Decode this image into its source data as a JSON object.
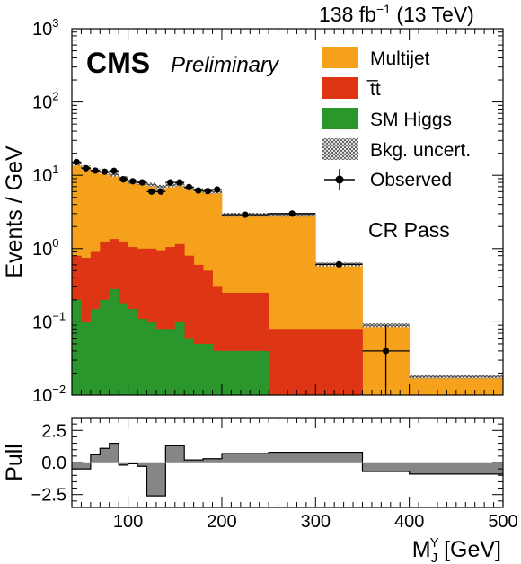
{
  "header": {
    "lumi": "138 fb",
    "lumi_sup": "−1",
    "energy": "(13 TeV)"
  },
  "labels": {
    "cms": "CMS",
    "preliminary": "Preliminary",
    "region": "CR Pass"
  },
  "colors": {
    "multijet": "#f5a11b",
    "ttbar": "#de3615",
    "smhiggs": "#2b962b",
    "pull_fill": "#868686",
    "hatch": "#555555"
  },
  "chart_data": [
    {
      "type": "stacked-bar-histogram",
      "xlabel": "",
      "ylabel": "Events / GeV",
      "yscale": "log",
      "ylim": [
        0.01,
        1000
      ],
      "xlim": [
        40,
        500
      ],
      "ytick_labels": [
        {
          "base": "10",
          "exp": "−2"
        },
        {
          "base": "10",
          "exp": "−1"
        },
        {
          "base": "10",
          "exp": "0"
        },
        {
          "base": "10",
          "exp": "1"
        },
        {
          "base": "10",
          "exp": "2"
        },
        {
          "base": "10",
          "exp": "3"
        }
      ],
      "bin_edges": [
        40,
        50,
        60,
        70,
        80,
        90,
        100,
        110,
        120,
        130,
        140,
        150,
        160,
        170,
        180,
        190,
        200,
        250,
        300,
        350,
        400,
        500
      ],
      "series": [
        {
          "name": "SM Higgs",
          "stack_top": [
            0.2,
            0.1,
            0.15,
            0.2,
            0.28,
            0.18,
            0.15,
            0.11,
            0.1,
            0.08,
            0.08,
            0.1,
            0.06,
            0.05,
            0.05,
            0.04,
            0.04,
            0.01,
            0.01,
            0.01,
            0.01
          ]
        },
        {
          "name": "t̅t",
          "latex": "t\\bar{t}",
          "stack_top": [
            0.8,
            0.75,
            0.9,
            1.25,
            1.35,
            1.25,
            1.05,
            1.0,
            1.0,
            0.95,
            1.05,
            1.15,
            0.8,
            0.6,
            0.5,
            0.3,
            0.25,
            0.08,
            0.08,
            0.01,
            0.01
          ]
        },
        {
          "name": "Multijet",
          "stack_top": [
            14.5,
            12.8,
            11.8,
            11.0,
            10.2,
            9.2,
            8.2,
            7.9,
            7.5,
            7.0,
            7.3,
            7.5,
            6.7,
            6.3,
            6.0,
            6.0,
            2.9,
            2.9,
            0.61,
            0.09,
            0.018
          ]
        }
      ],
      "uncertainty": {
        "name": "Bkg. uncert.",
        "relative": 0.06
      },
      "observed": {
        "name": "Observed",
        "x": [
          45,
          55,
          65,
          75,
          85,
          95,
          105,
          115,
          125,
          135,
          145,
          155,
          165,
          175,
          185,
          195,
          225,
          275,
          325,
          375,
          450
        ],
        "xerr": [
          5,
          5,
          5,
          5,
          5,
          5,
          5,
          5,
          5,
          5,
          5,
          5,
          5,
          5,
          5,
          5,
          25,
          25,
          25,
          25,
          50
        ],
        "y": [
          15.2,
          12.5,
          11.6,
          11.2,
          11.5,
          8.8,
          8.3,
          8.0,
          6.0,
          6.0,
          8.0,
          8.0,
          6.9,
          6.2,
          6.1,
          6.4,
          2.9,
          3.0,
          0.61,
          0.04,
          null
        ],
        "yerr_low": [
          0.8,
          0.7,
          0.7,
          0.7,
          0.7,
          0.6,
          0.6,
          0.6,
          0.5,
          0.5,
          0.6,
          0.6,
          0.6,
          0.5,
          0.5,
          0.5,
          0.2,
          0.2,
          0.05,
          0.03,
          null
        ],
        "yerr_high": [
          0.8,
          0.7,
          0.7,
          0.7,
          0.7,
          0.6,
          0.6,
          0.6,
          0.5,
          0.5,
          0.6,
          0.6,
          0.6,
          0.5,
          0.5,
          0.5,
          0.2,
          0.2,
          0.05,
          0.05,
          null
        ]
      },
      "legend_placement": "top-right"
    },
    {
      "type": "bar-histogram",
      "ylabel": "Pull",
      "xlabel": "M",
      "xlabel_sup": "Y",
      "xlabel_sub": "J",
      "xlabel_unit": " [GeV]",
      "xlim": [
        40,
        500
      ],
      "ylim": [
        -3.5,
        3.5
      ],
      "yticks": [
        -2.5,
        0.0,
        2.5
      ],
      "ytick_labels": [
        "−2.5",
        "0.0",
        "2.5"
      ],
      "xticks": [
        100,
        200,
        300,
        400,
        500
      ],
      "xtick_labels": [
        "100",
        "200",
        "300",
        "400",
        "500"
      ],
      "bin_edges": [
        40,
        60,
        70,
        80,
        90,
        100,
        110,
        120,
        140,
        160,
        180,
        200,
        250,
        300,
        350,
        400,
        500
      ],
      "values": [
        -0.5,
        0.6,
        1.1,
        1.5,
        -0.2,
        -0.1,
        -0.3,
        -2.6,
        1.3,
        0.2,
        0.3,
        0.7,
        0.8,
        0.8,
        -0.7,
        -0.9
      ]
    }
  ]
}
